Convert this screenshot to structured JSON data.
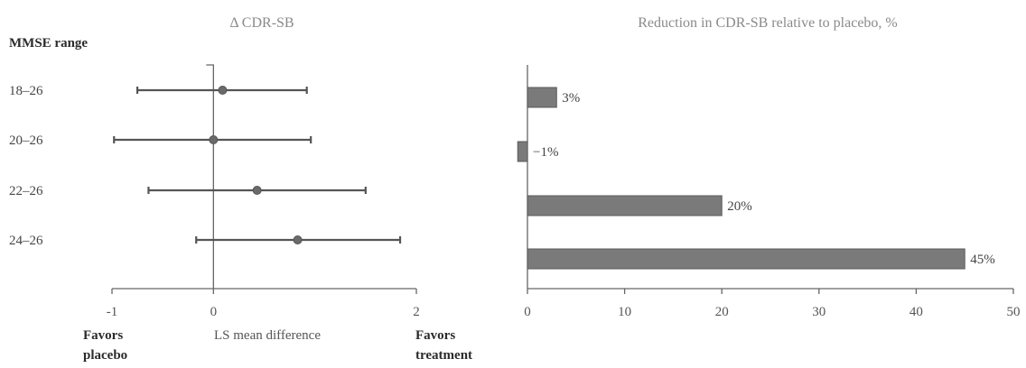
{
  "chart_data": [
    {
      "type": "forest",
      "title": "Δ CDR-SB",
      "row_header": "MMSE range",
      "xlabel": "LS mean difference",
      "left_annotation": [
        "Favors",
        "placebo"
      ],
      "right_annotation": [
        "Favors",
        "treatment"
      ],
      "xlim": [
        -1,
        2
      ],
      "xticks": [
        -1,
        0,
        2
      ],
      "reference_line": 0,
      "rows": [
        {
          "label": "18–26",
          "estimate": 0.09,
          "lower": -0.75,
          "upper": 0.92
        },
        {
          "label": "20–26",
          "estimate": 0.0,
          "lower": -0.98,
          "upper": 0.96
        },
        {
          "label": "22–26",
          "estimate": 0.43,
          "lower": -0.64,
          "upper": 1.5
        },
        {
          "label": "24–26",
          "estimate": 0.83,
          "lower": -0.17,
          "upper": 1.84
        }
      ]
    },
    {
      "type": "bar",
      "orientation": "horizontal",
      "title": "Reduction in CDR-SB relative to placebo, %",
      "categories": [
        "18–26",
        "20–26",
        "22–26",
        "24–26"
      ],
      "values": [
        3,
        -1,
        20,
        45
      ],
      "value_labels": [
        "3%",
        "−1%",
        "20%",
        "45%"
      ],
      "xlim": [
        0,
        50
      ],
      "xticks": [
        0,
        10,
        20,
        30,
        40,
        50
      ]
    }
  ]
}
